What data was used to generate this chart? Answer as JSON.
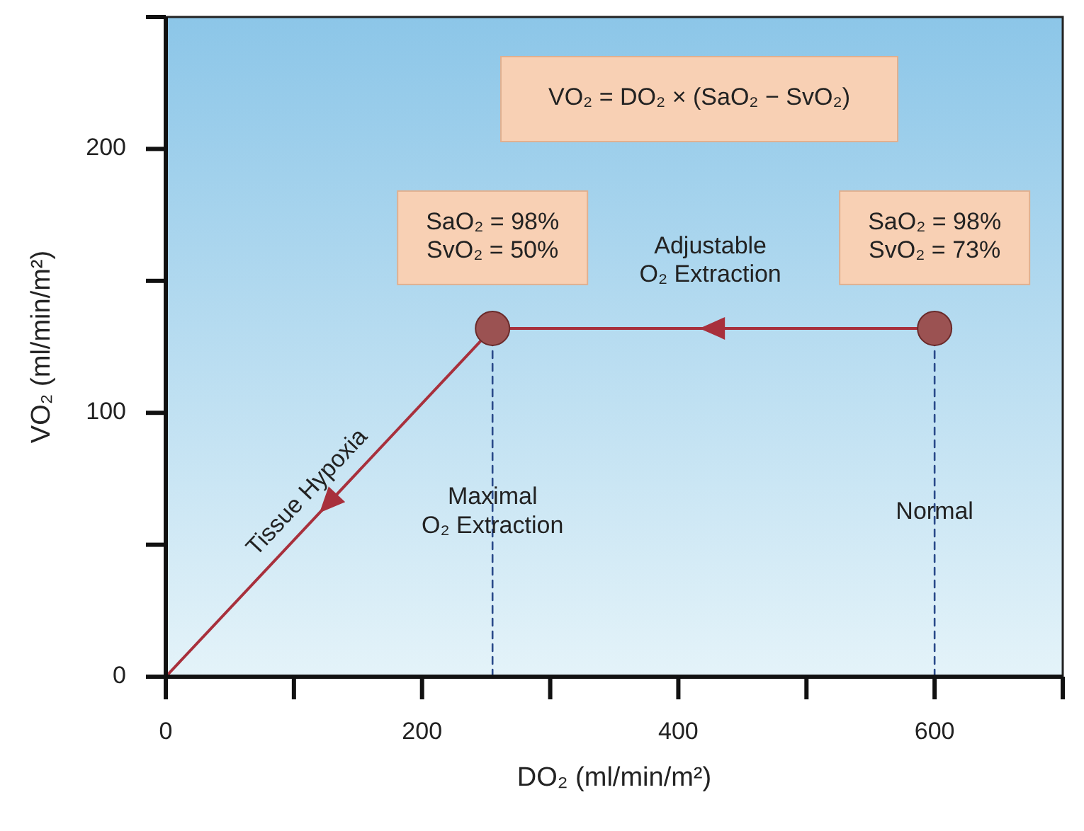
{
  "chart_data": {
    "type": "line",
    "xlabel": "DO₂  (ml/min/m²)",
    "ylabel": "VO₂  (ml/min/m²)",
    "xlim": [
      0,
      700
    ],
    "xticks": [
      0,
      {
        "value": 100,
        "label": null
      },
      200,
      {
        "value": 300,
        "label": null
      },
      400,
      {
        "value": 500,
        "label": null
      },
      600,
      {
        "value": 700,
        "label": null
      }
    ],
    "ylim": [
      0,
      250
    ],
    "yticks": [
      0,
      {
        "value": 50,
        "label": null
      },
      100,
      {
        "value": 150,
        "label": null
      },
      200,
      {
        "value": 250,
        "label": null
      }
    ],
    "grid": false,
    "series": [
      {
        "color": "#a8303c",
        "x": [
          0,
          255,
          600
        ],
        "values": [
          0,
          132,
          132
        ],
        "marker": "none",
        "line_style": "solid"
      },
      {
        "type": "line",
        "color": "#2a4a8a",
        "x": [
          255,
          255
        ],
        "values": [
          0,
          132
        ],
        "marker": "none",
        "line_style": "dashed"
      },
      {
        "type": "line",
        "color": "#2a4a8a",
        "x": [
          600,
          600
        ],
        "values": [
          0,
          132
        ],
        "marker": "none",
        "line_style": "dashed"
      },
      {
        "type": "scatter",
        "color": "#9b5252",
        "x": [
          255,
          600
        ],
        "values": [
          132,
          132
        ],
        "marker": "circle"
      }
    ],
    "annotations": [
      "VO₂ = DO₂ × (SaO₂ − SvO₂)",
      {
        "text": "SaO₂ = 98%\nSvO₂ = 50%",
        "x": 255,
        "y": 132
      },
      {
        "text": "SaO₂ = 98%\nSvO₂ = 73%",
        "x": 600,
        "y": 132
      },
      {
        "text": "Adjustable\nO₂ Extraction",
        "x": 425,
        "y": 132
      },
      {
        "text": "Tissue Hypoxia",
        "x": 120,
        "y": 62
      },
      {
        "text": "Maximal\nO₂ Extraction",
        "x": 255,
        "y": 62
      },
      {
        "text": "Normal",
        "x": 600,
        "y": 62
      }
    ]
  }
}
